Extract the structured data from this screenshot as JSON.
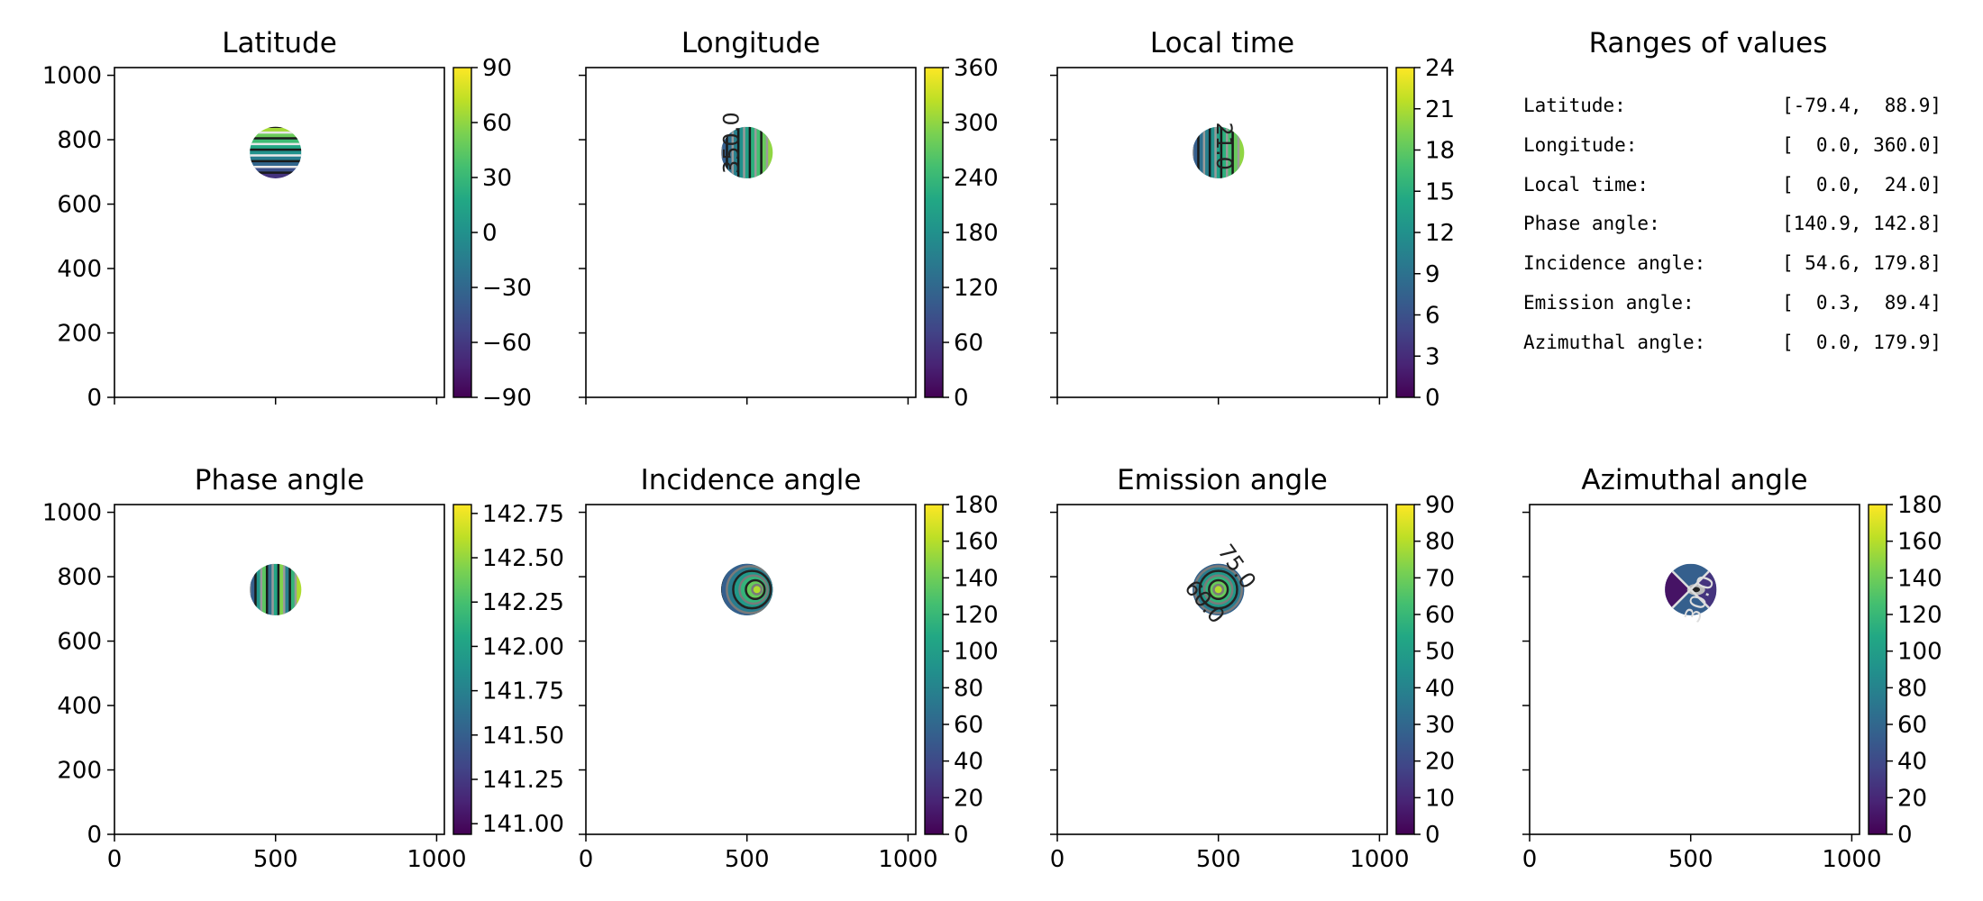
{
  "colors": {
    "viridis": [
      "#440154",
      "#482475",
      "#414487",
      "#355f8d",
      "#2a788e",
      "#21918c",
      "#22a884",
      "#44bf70",
      "#7ad151",
      "#bddf26",
      "#fde725"
    ]
  },
  "ranges": {
    "title": "Ranges of values",
    "rows": [
      {
        "label": "Latitude:",
        "value": "[-79.4,  88.9]"
      },
      {
        "label": "Longitude:",
        "value": "[  0.0, 360.0]"
      },
      {
        "label": "Local time:",
        "value": "[  0.0,  24.0]"
      },
      {
        "label": "Phase angle:",
        "value": "[140.9, 142.8]"
      },
      {
        "label": "Incidence angle:",
        "value": "[ 54.6, 179.8]"
      },
      {
        "label": "Emission angle:",
        "value": "[  0.3,  89.4]"
      },
      {
        "label": "Azimuthal angle:",
        "value": "[  0.0, 179.9]"
      }
    ]
  },
  "chart_data": [
    {
      "type": "heatmap",
      "title": "Latitude",
      "xlim": [
        0,
        1024
      ],
      "ylim": [
        0,
        1024
      ],
      "xticks": [
        0,
        500,
        1000
      ],
      "yticks": [
        0,
        200,
        400,
        600,
        800,
        1000
      ],
      "disk": {
        "cx": 500,
        "cy": 760,
        "r": 80,
        "pattern": "horizontal-bands",
        "value_range": [
          -79.4,
          88.9
        ]
      },
      "colorbar": {
        "range": [
          -90,
          90
        ],
        "ticks": [
          90,
          60,
          30,
          0,
          -30,
          -60,
          -90
        ],
        "tick_labels": [
          "90",
          "60",
          "30",
          "0",
          "−30",
          "−60",
          "−90"
        ]
      },
      "contour_labels": []
    },
    {
      "type": "heatmap",
      "title": "Longitude",
      "xlim": [
        0,
        1024
      ],
      "ylim": [
        0,
        1024
      ],
      "xticks": [
        0,
        500,
        1000
      ],
      "yticks": [
        0,
        200,
        400,
        600,
        800,
        1000
      ],
      "disk": {
        "cx": 500,
        "cy": 760,
        "r": 80,
        "pattern": "vertical-meridians",
        "value_range": [
          0,
          360
        ]
      },
      "colorbar": {
        "range": [
          0,
          360
        ],
        "ticks": [
          360,
          300,
          240,
          180,
          120,
          60,
          0
        ],
        "tick_labels": [
          "360",
          "300",
          "240",
          "180",
          "120",
          "60",
          "0"
        ]
      },
      "contour_labels": [
        {
          "text": "350.0",
          "x": 455,
          "y": 790,
          "rotate": -90
        }
      ]
    },
    {
      "type": "heatmap",
      "title": "Local time",
      "xlim": [
        0,
        1024
      ],
      "ylim": [
        0,
        1024
      ],
      "xticks": [
        0,
        500,
        1000
      ],
      "yticks": [
        0,
        200,
        400,
        600,
        800,
        1000
      ],
      "disk": {
        "cx": 500,
        "cy": 760,
        "r": 80,
        "pattern": "vertical-meridians",
        "value_range": [
          0,
          24
        ]
      },
      "colorbar": {
        "range": [
          0,
          24
        ],
        "ticks": [
          24,
          21,
          18,
          15,
          12,
          9,
          6,
          3,
          0
        ],
        "tick_labels": [
          "24",
          "21",
          "18",
          "15",
          "12",
          "9",
          "6",
          "3",
          "0"
        ]
      },
      "contour_labels": [
        {
          "text": "21.0",
          "x": 515,
          "y": 780,
          "rotate": 90
        }
      ]
    },
    {
      "type": "blank",
      "title": "Ranges of values"
    },
    {
      "type": "heatmap",
      "title": "Phase angle",
      "xlim": [
        0,
        1024
      ],
      "ylim": [
        0,
        1024
      ],
      "xticks": [
        0,
        500,
        1000
      ],
      "yticks": [
        0,
        200,
        400,
        600,
        800,
        1000
      ],
      "xtick_labels": [
        "0",
        "500",
        "1000"
      ],
      "disk": {
        "cx": 500,
        "cy": 760,
        "r": 80,
        "pattern": "vertical-stripes",
        "value_range": [
          140.9,
          142.8
        ]
      },
      "colorbar": {
        "range": [
          140.94,
          142.8
        ],
        "ticks": [
          142.75,
          142.5,
          142.25,
          142.0,
          141.75,
          141.5,
          141.25,
          141.0
        ],
        "tick_labels": [
          "142.75",
          "142.50",
          "142.25",
          "142.00",
          "141.75",
          "141.50",
          "141.25",
          "141.00"
        ]
      },
      "contour_labels": []
    },
    {
      "type": "heatmap",
      "title": "Incidence angle",
      "xlim": [
        0,
        1024
      ],
      "ylim": [
        0,
        1024
      ],
      "xticks": [
        0,
        500,
        1000
      ],
      "yticks": [
        0,
        200,
        400,
        600,
        800,
        1000
      ],
      "xtick_labels": [
        "0",
        "500",
        "1000"
      ],
      "disk": {
        "cx": 500,
        "cy": 760,
        "r": 80,
        "pattern": "offset-rings",
        "value_range": [
          54.6,
          179.8
        ]
      },
      "colorbar": {
        "range": [
          0,
          180
        ],
        "ticks": [
          180,
          160,
          140,
          120,
          100,
          80,
          60,
          40,
          20,
          0
        ],
        "tick_labels": [
          "180",
          "160",
          "140",
          "120",
          "100",
          "80",
          "60",
          "40",
          "20",
          "0"
        ]
      },
      "contour_labels": []
    },
    {
      "type": "heatmap",
      "title": "Emission angle",
      "xlim": [
        0,
        1024
      ],
      "ylim": [
        0,
        1024
      ],
      "xticks": [
        0,
        500,
        1000
      ],
      "yticks": [
        0,
        200,
        400,
        600,
        800,
        1000
      ],
      "xtick_labels": [
        "0",
        "500",
        "1000"
      ],
      "disk": {
        "cx": 500,
        "cy": 760,
        "r": 80,
        "pattern": "concentric-rings",
        "value_range": [
          0.3,
          89.4
        ]
      },
      "colorbar": {
        "range": [
          0,
          90
        ],
        "ticks": [
          90,
          80,
          70,
          60,
          50,
          40,
          30,
          20,
          10,
          0
        ],
        "tick_labels": [
          "90",
          "80",
          "70",
          "60",
          "50",
          "40",
          "30",
          "20",
          "10",
          "0"
        ]
      },
      "contour_labels": [
        {
          "text": "75.0",
          "x": 555,
          "y": 830,
          "rotate": 55
        },
        {
          "text": "60.0",
          "x": 455,
          "y": 720,
          "rotate": 50
        }
      ]
    },
    {
      "type": "heatmap",
      "title": "Azimuthal angle",
      "xlim": [
        0,
        1024
      ],
      "ylim": [
        0,
        1024
      ],
      "xticks": [
        0,
        500,
        1000
      ],
      "yticks": [
        0,
        200,
        400,
        600,
        800,
        1000
      ],
      "xtick_labels": [
        "0",
        "500",
        "1000"
      ],
      "disk": {
        "cx": 500,
        "cy": 760,
        "r": 80,
        "pattern": "azimuth-wedges",
        "value_range": [
          0,
          179.9
        ]
      },
      "colorbar": {
        "range": [
          0,
          180
        ],
        "ticks": [
          180,
          160,
          140,
          120,
          100,
          80,
          60,
          40,
          20,
          0
        ],
        "tick_labels": [
          "180",
          "160",
          "140",
          "120",
          "100",
          "80",
          "60",
          "40",
          "20",
          "0"
        ]
      },
      "contour_labels": [
        {
          "text": "30.0",
          "x": 530,
          "y": 730,
          "rotate": -70
        }
      ]
    }
  ],
  "ytick_labels": [
    "0",
    "200",
    "400",
    "600",
    "800",
    "1000"
  ],
  "xtick_labels": [
    "0",
    "500",
    "1000"
  ]
}
